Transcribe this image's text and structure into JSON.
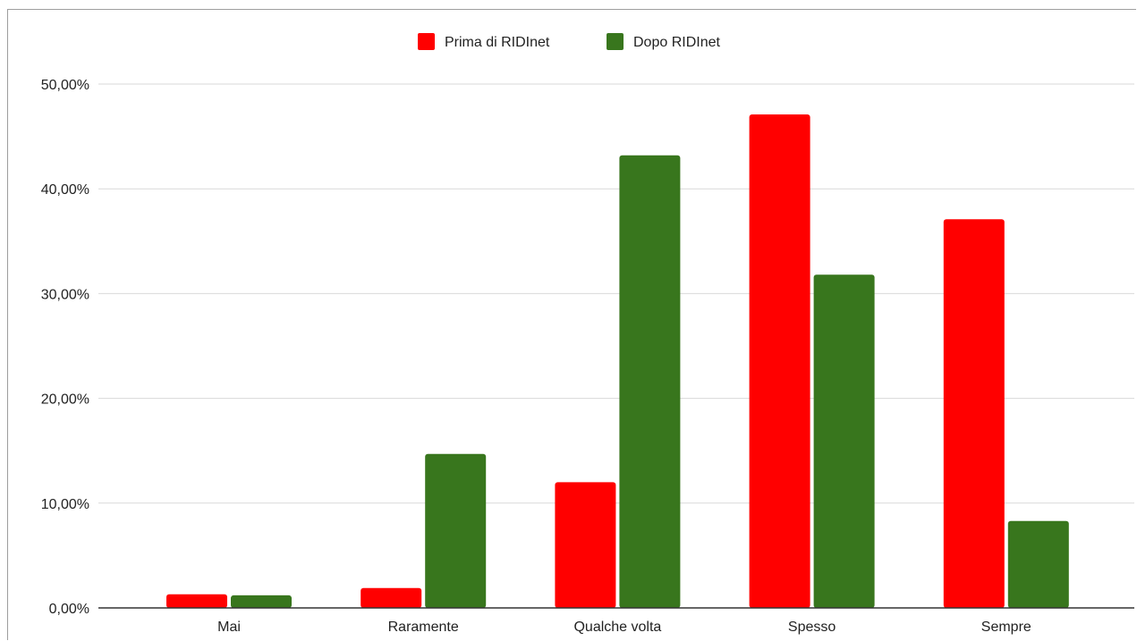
{
  "chart_data": {
    "type": "bar",
    "categories": [
      "Mai",
      "Raramente",
      "Qualche volta",
      "Spesso",
      "Sempre"
    ],
    "series": [
      {
        "name": "Prima di RIDInet",
        "color": "#ff0000",
        "values": [
          1.3,
          1.9,
          12.0,
          47.1,
          37.1
        ]
      },
      {
        "name": "Dopo RIDInet",
        "color": "#38761d",
        "values": [
          1.2,
          14.7,
          43.2,
          31.8,
          8.3
        ]
      }
    ],
    "ylim": [
      0,
      50
    ],
    "yticks": [
      0,
      10,
      20,
      30,
      40,
      50
    ],
    "ytick_labels": [
      "0,00%",
      "10,00%",
      "20,00%",
      "30,00%",
      "40,00%",
      "50,00%"
    ],
    "grid": true,
    "legend_position": "top-center",
    "title": "",
    "xlabel": "",
    "ylabel": ""
  }
}
